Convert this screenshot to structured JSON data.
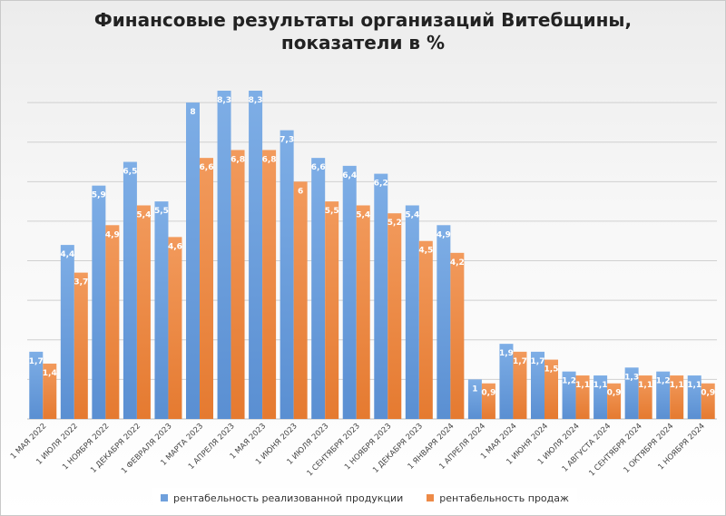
{
  "chart_data": {
    "type": "bar",
    "title": "Финансовые результаты организаций Витебщины, показатели в %",
    "title_lines": [
      "Финансовые результаты организаций Витебщины,",
      "показатели в %"
    ],
    "categories": [
      "1 МАЯ 2022",
      "1 ИЮЛЯ 2022",
      "1 НОЯБРЯ 2022",
      "1 ДЕКАБРЯ 2022",
      "1 ФЕВРАЛЯ 2023",
      "1 МАРТА 2023",
      "1 АПРЕЛЯ 2023",
      "1 МАЯ 2023",
      "1 ИЮНЯ 2023",
      "1 ИЮЛЯ 2023",
      "1 СЕНТЯБРЯ 2023",
      "1 НОЯБРЯ 2023",
      "1 ДЕКАБРЯ 2023",
      "1 ЯНВАРЯ 2024",
      "1 АПРЕЛЯ 2024",
      "1 МАЯ 2024",
      "1 ИЮНЯ 2024",
      "1 ИЮЛЯ 2024",
      "1 АВГУСТА 2024",
      "1 СЕНТЯБРЯ 2024",
      "1 ОКТЯБРЯ 2024",
      "1 НОЯБРЯ 2024"
    ],
    "series": [
      {
        "name": "рентабельность реализованной продукции",
        "color": "#6fa0dc",
        "values": [
          1.7,
          4.4,
          5.9,
          6.5,
          5.5,
          8,
          8.3,
          8.3,
          7.3,
          6.6,
          6.4,
          6.2,
          5.4,
          4.9,
          1,
          1.9,
          1.7,
          1.2,
          1.1,
          1.3,
          1.2,
          1.1
        ],
        "labels": [
          "1,7",
          "4,4",
          "5,9",
          "6,5",
          "5,5",
          "8",
          "8,3",
          "8,3",
          "7,3",
          "6,6",
          "6,4",
          "6,2",
          "5,4",
          "4,9",
          "1",
          "1,9",
          "1,7",
          "1,2",
          "1,1",
          "1,3",
          "1,2",
          "1,1"
        ]
      },
      {
        "name": "рентабельность продаж",
        "color": "#ed8a47",
        "values": [
          1.4,
          3.7,
          4.9,
          5.4,
          4.6,
          6.6,
          6.8,
          6.8,
          6,
          5.5,
          5.4,
          5.2,
          4.5,
          4.2,
          0.9,
          1.7,
          1.5,
          1.1,
          0.9,
          1.1,
          1.1,
          0.9
        ],
        "labels": [
          "1,4",
          "3,7",
          "4,9",
          "5,4",
          "4,6",
          "6,6",
          "6,8",
          "6,8",
          "6",
          "5,5",
          "5,4",
          "5,2",
          "4,5",
          "4,2",
          "0,9",
          "1,7",
          "1,5",
          "1,1",
          "0,9",
          "1,1",
          "1,1",
          "0,9"
        ]
      }
    ],
    "ylim": [
      0,
      8.3
    ],
    "grid": true,
    "legend_position": "bottom"
  }
}
